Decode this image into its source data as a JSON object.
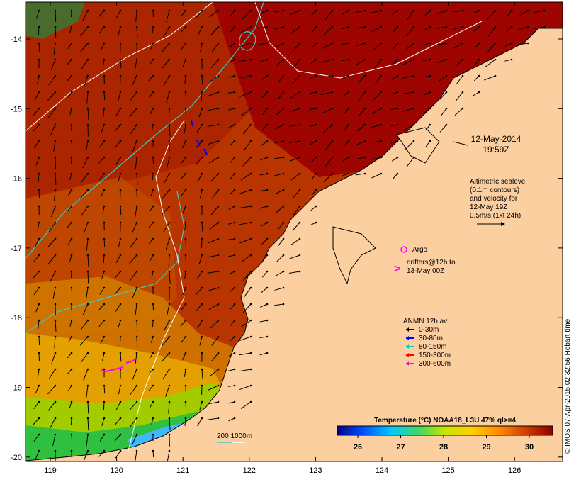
{
  "map": {
    "date": "12-May-2014",
    "time": "19:59Z",
    "altimetry_note": [
      "Altimetric sealevel",
      "(0.1m contours)",
      "and velocity for",
      "12-May 19Z",
      "0.5m/s (1kt 24h)"
    ],
    "argo_label": "Argo",
    "drifters_note": [
      "drifters@12h to",
      "13-May 00Z"
    ],
    "anmn_title": "ANMN 12h av.",
    "anmn_legend": [
      {
        "label": "0-30m",
        "color": "#000000"
      },
      {
        "label": "30-80m",
        "color": "#0000ff"
      },
      {
        "label": "80-150m",
        "color": "#00c8c8"
      },
      {
        "label": "150-300m",
        "color": "#ff0000"
      },
      {
        "label": "300-600m",
        "color": "#ff00ff"
      }
    ],
    "isobath_label": "200  1000m",
    "colorbar_title": "Temperature (°C) NOAA18_L3U 47% ql>=4",
    "colorbar_ticks": [
      "26",
      "27",
      "28",
      "29",
      "30"
    ],
    "lon_ticks": [
      "119",
      "120",
      "121",
      "122",
      "123",
      "124",
      "125",
      "126"
    ],
    "lat_ticks": [
      "-14",
      "-15",
      "-16",
      "-17",
      "-18",
      "-19",
      "-20"
    ],
    "credit": "© IMOS 07-Apr-2015 02:32:56 Hobart time",
    "colors": {
      "land": "#fccfa0",
      "sea_warm": "#b82a00",
      "sea_hot": "#a00000",
      "coast_cool": "#40c040",
      "isobath_200": "#40c8c0",
      "isobath_1000": "#ffffff"
    }
  }
}
